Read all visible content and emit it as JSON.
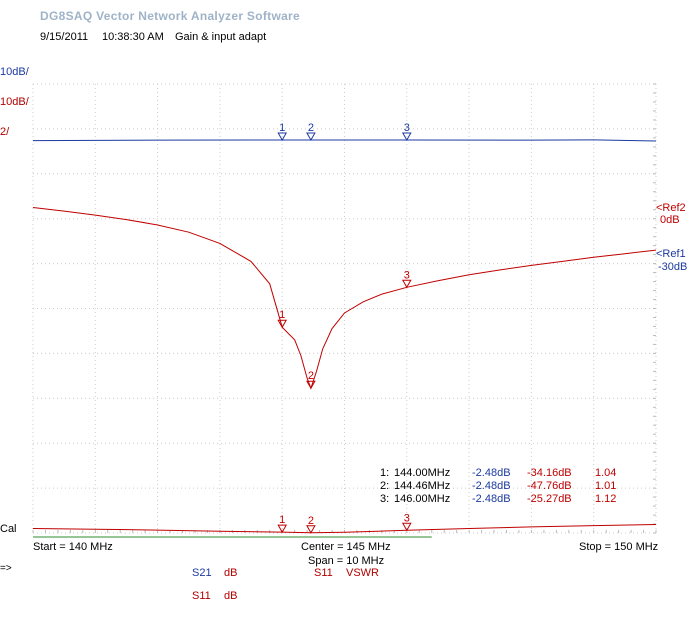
{
  "header": {
    "app_title": "DG8SAQ Vector Network Analyzer Software",
    "date": "9/15/2011",
    "time": "10:38:30 AM",
    "note": "Gain & input adapt"
  },
  "scales": [
    "10dB/",
    "10dB/",
    "2/"
  ],
  "cal_label": "Cal",
  "refs": {
    "ref2_label": "<Ref2",
    "ref2_value": "0dB",
    "ref1_label": "<Ref1",
    "ref1_value": "-30dB"
  },
  "footer": {
    "start": "Start = 140 MHz",
    "center": "Center = 145 MHz",
    "span": "Span = 10 MHz",
    "stop": "Stop = 150 MHz",
    "arrow": "=>"
  },
  "legend": [
    {
      "name": "S21",
      "unit": "dB",
      "color": "#1c3aa0"
    },
    {
      "name": "S11",
      "unit": "VSWR",
      "color": "#b00000"
    },
    {
      "name": "S11",
      "unit": "dB",
      "color": "#b00000"
    }
  ],
  "markers": [
    {
      "num": "1:",
      "freq": "144.00MHz",
      "s21": "-2.48dB",
      "s11": "-34.16dB",
      "vswr": "1.04"
    },
    {
      "num": "2:",
      "freq": "144.46MHz",
      "s21": "-2.48dB",
      "s11": "-47.76dB",
      "vswr": "1.01"
    },
    {
      "num": "3:",
      "freq": "146.00MHz",
      "s21": "-2.48dB",
      "s11": "-25.27dB",
      "vswr": "1.12"
    }
  ],
  "chart_data": {
    "type": "line",
    "x_unit": "MHz",
    "xlim": [
      140,
      150
    ],
    "grid": true,
    "marker_freqs": [
      144.0,
      144.46,
      146.0
    ],
    "marker_labels": [
      "1",
      "2",
      "3"
    ],
    "series": [
      {
        "name": "S21",
        "unit": "dB",
        "color": "#1c3aa0",
        "ref_level_div": 1,
        "scale_per_div": 10,
        "x": [
          140,
          142,
          144,
          144.46,
          146,
          148,
          149,
          150
        ],
        "y": [
          -2.6,
          -2.5,
          -2.48,
          -2.48,
          -2.48,
          -2.5,
          -2.45,
          -2.7
        ]
      },
      {
        "name": "S11",
        "unit": "dB",
        "color": "#c00000",
        "ref_level_div": 2,
        "scale_per_div": 10,
        "x": [
          140,
          140.5,
          141,
          141.5,
          142,
          142.5,
          143,
          143.5,
          143.8,
          144,
          144.2,
          144.3,
          144.4,
          144.46,
          144.55,
          144.65,
          144.8,
          145,
          145.3,
          145.6,
          146,
          146.5,
          147,
          147.5,
          148,
          148.5,
          149,
          149.5,
          150
        ],
        "y": [
          -7.5,
          -8.3,
          -9.2,
          -10.2,
          -11.4,
          -13.0,
          -15.5,
          -19.5,
          -24.5,
          -34.16,
          -37.0,
          -40.5,
          -45.5,
          -47.76,
          -44.0,
          -39.0,
          -34.5,
          -31.0,
          -28.5,
          -26.8,
          -25.27,
          -23.8,
          -22.5,
          -21.4,
          -20.4,
          -19.5,
          -18.6,
          -17.8,
          -17.0
        ]
      },
      {
        "name": "S11",
        "unit": "VSWR",
        "color": "#c00000",
        "ref_level_div": 10,
        "scale_per_div": 2,
        "x": [
          140,
          141,
          142,
          143,
          144,
          144.46,
          145,
          146,
          147,
          148,
          149,
          150
        ],
        "y": [
          1.2,
          1.17,
          1.13,
          1.08,
          1.04,
          1.01,
          1.03,
          1.12,
          1.2,
          1.27,
          1.33,
          1.38
        ]
      }
    ]
  }
}
